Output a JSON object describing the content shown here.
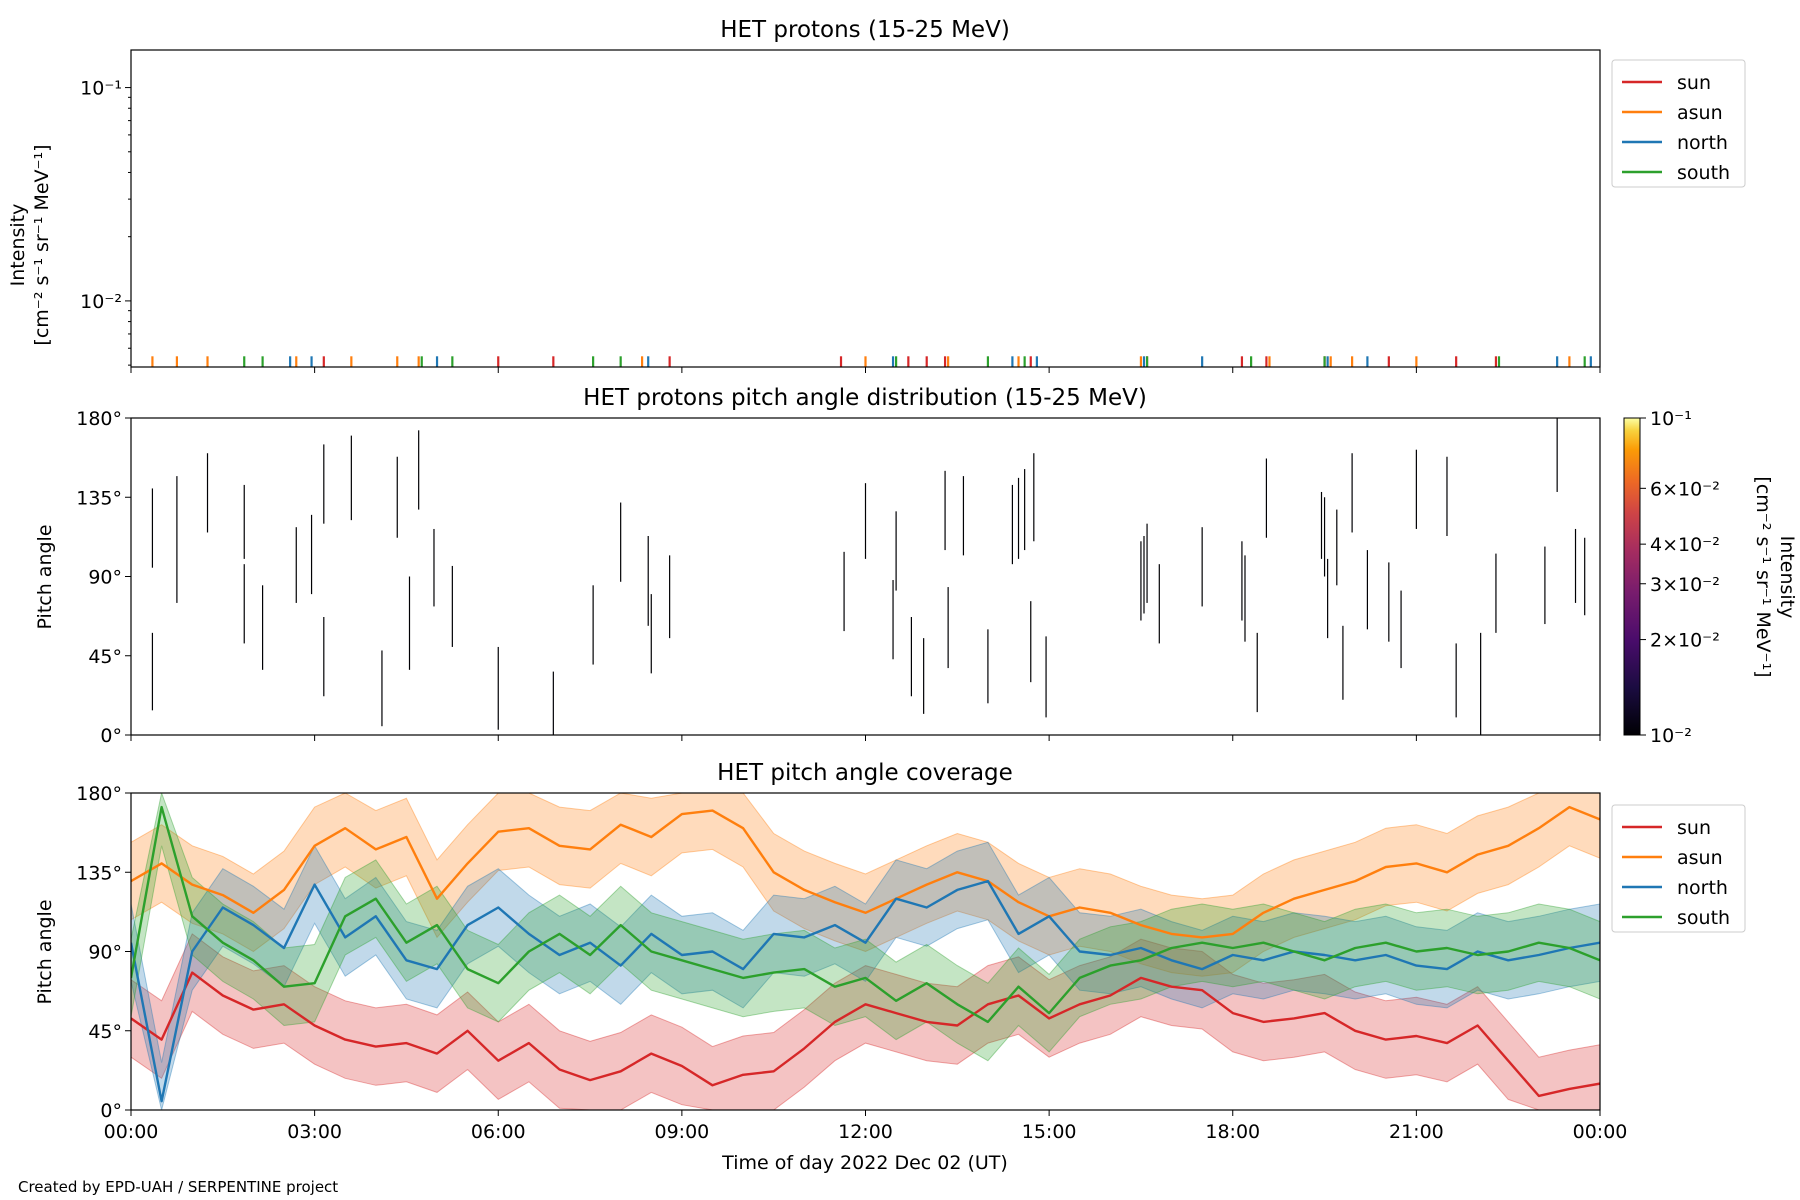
{
  "footer": "Created by EPD-UAH / SERPENTINE project",
  "colors": {
    "sun": "#d62728",
    "asun": "#ff7f0e",
    "north": "#1f77b4",
    "south": "#2ca02c"
  },
  "x_axis": {
    "label": "Time of day 2022 Dec 02 (UT)",
    "ticks": [
      "00:00",
      "03:00",
      "06:00",
      "09:00",
      "12:00",
      "15:00",
      "18:00",
      "21:00",
      "00:00"
    ],
    "range_hours": [
      0,
      24
    ]
  },
  "chart_data": [
    {
      "type": "line",
      "title": "HET protons (15-25 MeV)",
      "ylabel_lines": [
        "Intensity",
        "[cm⁻² s⁻¹ sr⁻¹ MeV⁻¹]"
      ],
      "yscale": "log",
      "ylim": [
        0.0049,
        0.15
      ],
      "y_ticks": [
        {
          "value": 0.1,
          "label": "10⁻¹"
        },
        {
          "value": 0.01,
          "label": "10⁻²"
        }
      ],
      "legend": {
        "position": "outside-top-right",
        "entries": [
          "sun",
          "asun",
          "north",
          "south"
        ]
      },
      "note": "isolated single-count spikes near 0.0055",
      "series": [
        {
          "name": "sun",
          "spike_value": 0.0055,
          "times_h": [
            3.15,
            6.0,
            6.9,
            8.8,
            11.6,
            12.7,
            13.0,
            13.3,
            14.7,
            16.6,
            18.15,
            18.55,
            19.5,
            20.55,
            21.65,
            22.3
          ]
        },
        {
          "name": "asun",
          "times_h": [
            0.35,
            0.75,
            1.25,
            2.7,
            3.6,
            4.35,
            4.7,
            8.35,
            12.0,
            13.35,
            14.5,
            16.5,
            18.6,
            19.6,
            19.95,
            21.0,
            23.5
          ],
          "spike_value": 0.0055
        },
        {
          "name": "north",
          "times_h": [
            2.6,
            2.95,
            5.0,
            8.45,
            12.45,
            14.4,
            14.8,
            16.55,
            17.5,
            19.55,
            20.2,
            23.3,
            23.85
          ],
          "spike_value": 0.0055
        },
        {
          "name": "south",
          "times_h": [
            1.85,
            2.15,
            4.75,
            5.25,
            7.55,
            8.0,
            12.5,
            14.0,
            14.6,
            16.6,
            18.3,
            19.5,
            22.35,
            23.75
          ],
          "spike_value": 0.0055
        }
      ]
    },
    {
      "type": "heatmap",
      "title": "HET protons pitch angle distribution (15-25 MeV)",
      "ylabel": "Pitch angle",
      "ylim": [
        0,
        180
      ],
      "y_ticks": [
        "0°",
        "45°",
        "90°",
        "135°",
        "180°"
      ],
      "y_tick_values": [
        0,
        45,
        90,
        135,
        180
      ],
      "colorbar": {
        "label_lines": [
          "Intensity",
          "[cm⁻² s⁻¹ sr⁻¹ MeV⁻¹]"
        ],
        "scale": "log",
        "range": [
          0.01,
          0.1
        ],
        "ticks": [
          {
            "value": 0.1,
            "label": "10⁻¹"
          },
          {
            "value": 0.06,
            "label": "6×10⁻²"
          },
          {
            "value": 0.04,
            "label": "4×10⁻²"
          },
          {
            "value": 0.03,
            "label": "3×10⁻²"
          },
          {
            "value": 0.02,
            "label": "2×10⁻²"
          },
          {
            "value": 0.01,
            "label": "10⁻²"
          }
        ]
      },
      "segments": [
        [
          0.35,
          14,
          58
        ],
        [
          0.35,
          95,
          140
        ],
        [
          0.75,
          75,
          147
        ],
        [
          1.25,
          115,
          160
        ],
        [
          1.85,
          52,
          97
        ],
        [
          1.85,
          100,
          142
        ],
        [
          2.15,
          37,
          85
        ],
        [
          2.7,
          75,
          118
        ],
        [
          2.95,
          80,
          125
        ],
        [
          3.15,
          22,
          67
        ],
        [
          3.15,
          120,
          165
        ],
        [
          3.6,
          122,
          170
        ],
        [
          4.1,
          5,
          48
        ],
        [
          4.35,
          112,
          158
        ],
        [
          4.55,
          37,
          90
        ],
        [
          4.7,
          128,
          173
        ],
        [
          4.95,
          73,
          117
        ],
        [
          5.25,
          50,
          96
        ],
        [
          6.0,
          3,
          50
        ],
        [
          6.9,
          0,
          36
        ],
        [
          7.55,
          40,
          85
        ],
        [
          8.0,
          87,
          132
        ],
        [
          8.45,
          62,
          113
        ],
        [
          8.5,
          35,
          80
        ],
        [
          8.8,
          55,
          102
        ],
        [
          11.65,
          59,
          104
        ],
        [
          12.0,
          100,
          143
        ],
        [
          12.45,
          43,
          88
        ],
        [
          12.5,
          82,
          127
        ],
        [
          12.75,
          22,
          67
        ],
        [
          12.95,
          12,
          55
        ],
        [
          13.3,
          105,
          150
        ],
        [
          13.35,
          38,
          84
        ],
        [
          13.6,
          102,
          147
        ],
        [
          14.0,
          18,
          60
        ],
        [
          14.4,
          97,
          142
        ],
        [
          14.5,
          100,
          146
        ],
        [
          14.6,
          105,
          151
        ],
        [
          14.7,
          30,
          76
        ],
        [
          14.75,
          110,
          160
        ],
        [
          14.95,
          10,
          56
        ],
        [
          16.5,
          65,
          110
        ],
        [
          16.55,
          69,
          113
        ],
        [
          16.6,
          75,
          120
        ],
        [
          16.8,
          52,
          97
        ],
        [
          17.5,
          73,
          118
        ],
        [
          18.15,
          65,
          110
        ],
        [
          18.2,
          53,
          102
        ],
        [
          18.4,
          13,
          58
        ],
        [
          18.55,
          112,
          157
        ],
        [
          19.45,
          100,
          138
        ],
        [
          19.5,
          90,
          135
        ],
        [
          19.55,
          55,
          100
        ],
        [
          19.7,
          85,
          128
        ],
        [
          19.8,
          20,
          62
        ],
        [
          19.95,
          115,
          160
        ],
        [
          20.2,
          60,
          105
        ],
        [
          20.55,
          53,
          98
        ],
        [
          20.75,
          38,
          82
        ],
        [
          21.0,
          117,
          162
        ],
        [
          21.5,
          113,
          158
        ],
        [
          21.65,
          10,
          52
        ],
        [
          22.05,
          0,
          58
        ],
        [
          22.3,
          58,
          103
        ],
        [
          23.1,
          63,
          107
        ],
        [
          23.3,
          138,
          183
        ],
        [
          23.6,
          75,
          117
        ],
        [
          23.75,
          68,
          112
        ]
      ]
    },
    {
      "type": "area",
      "title": "HET pitch angle coverage",
      "xlabel": "Time of day 2022 Dec 02 (UT)",
      "ylabel": "Pitch angle",
      "ylim": [
        0,
        180
      ],
      "y_ticks": [
        "0°",
        "45°",
        "90°",
        "135°",
        "180°"
      ],
      "y_tick_values": [
        0,
        45,
        90,
        135,
        180
      ],
      "legend": {
        "position": "outside-top-right",
        "entries": [
          "sun",
          "asun",
          "north",
          "south"
        ]
      },
      "band_halfwidth_deg": 22,
      "series": [
        {
          "name": "sun",
          "times_h": [
            0,
            0.5,
            1,
            1.5,
            2,
            2.5,
            3,
            3.5,
            4,
            4.5,
            5,
            5.5,
            6,
            6.5,
            7,
            7.5,
            8,
            8.5,
            9,
            9.5,
            10,
            10.5,
            11,
            11.5,
            12,
            12.5,
            13,
            13.5,
            14,
            14.5,
            15,
            15.5,
            16,
            16.5,
            17,
            17.5,
            18,
            18.5,
            19,
            19.5,
            20,
            20.5,
            21,
            21.5,
            22,
            22.5,
            23,
            23.5,
            24
          ],
          "values": [
            52,
            40,
            78,
            65,
            57,
            60,
            48,
            40,
            36,
            38,
            32,
            45,
            28,
            38,
            23,
            17,
            22,
            32,
            25,
            14,
            20,
            22,
            35,
            50,
            60,
            55,
            50,
            48,
            60,
            65,
            52,
            60,
            65,
            75,
            70,
            68,
            55,
            50,
            52,
            55,
            45,
            40,
            42,
            38,
            48,
            28,
            8,
            12,
            15
          ]
        },
        {
          "name": "asun",
          "times_h": [
            0,
            0.5,
            1,
            1.5,
            2,
            2.5,
            3,
            3.5,
            4,
            4.5,
            5,
            5.5,
            6,
            6.5,
            7,
            7.5,
            8,
            8.5,
            9,
            9.5,
            10,
            10.5,
            11,
            11.5,
            12,
            12.5,
            13,
            13.5,
            14,
            14.5,
            15,
            15.5,
            16,
            16.5,
            17,
            17.5,
            18,
            18.5,
            19,
            19.5,
            20,
            20.5,
            21,
            21.5,
            22,
            22.5,
            23,
            23.5,
            24
          ],
          "values": [
            130,
            140,
            128,
            122,
            112,
            125,
            150,
            160,
            148,
            155,
            120,
            140,
            158,
            160,
            150,
            148,
            162,
            155,
            168,
            170,
            160,
            135,
            125,
            118,
            112,
            120,
            128,
            135,
            130,
            118,
            110,
            115,
            112,
            105,
            100,
            98,
            100,
            112,
            120,
            125,
            130,
            138,
            140,
            135,
            145,
            150,
            160,
            172,
            165
          ]
        },
        {
          "name": "north",
          "times_h": [
            0,
            0.5,
            1,
            1.5,
            2,
            2.5,
            3,
            3.5,
            4,
            4.5,
            5,
            5.5,
            6,
            6.5,
            7,
            7.5,
            8,
            8.5,
            9,
            9.5,
            10,
            10.5,
            11,
            11.5,
            12,
            12.5,
            13,
            13.5,
            14,
            14.5,
            15,
            15.5,
            16,
            16.5,
            17,
            17.5,
            18,
            18.5,
            19,
            19.5,
            20,
            20.5,
            21,
            21.5,
            22,
            22.5,
            23,
            23.5,
            24
          ],
          "values": [
            95,
            5,
            90,
            115,
            105,
            92,
            128,
            98,
            110,
            85,
            80,
            105,
            115,
            100,
            88,
            95,
            82,
            100,
            88,
            90,
            80,
            100,
            98,
            105,
            95,
            120,
            115,
            125,
            130,
            100,
            110,
            90,
            88,
            92,
            85,
            80,
            88,
            85,
            90,
            88,
            85,
            88,
            82,
            80,
            90,
            85,
            88,
            92,
            95
          ]
        },
        {
          "name": "south",
          "times_h": [
            0,
            0.5,
            1,
            1.5,
            2,
            2.5,
            3,
            3.5,
            4,
            4.5,
            5,
            5.5,
            6,
            6.5,
            7,
            7.5,
            8,
            8.5,
            9,
            9.5,
            10,
            10.5,
            11,
            11.5,
            12,
            12.5,
            13,
            13.5,
            14,
            14.5,
            15,
            15.5,
            16,
            16.5,
            17,
            17.5,
            18,
            18.5,
            19,
            19.5,
            20,
            20.5,
            21,
            21.5,
            22,
            22.5,
            23,
            23.5,
            24
          ],
          "values": [
            75,
            172,
            110,
            95,
            85,
            70,
            72,
            110,
            120,
            95,
            105,
            80,
            72,
            90,
            100,
            88,
            105,
            90,
            85,
            80,
            75,
            78,
            80,
            70,
            75,
            62,
            72,
            60,
            50,
            70,
            55,
            75,
            82,
            85,
            92,
            95,
            92,
            95,
            90,
            85,
            92,
            95,
            90,
            92,
            88,
            90,
            95,
            92,
            85
          ]
        }
      ]
    }
  ]
}
